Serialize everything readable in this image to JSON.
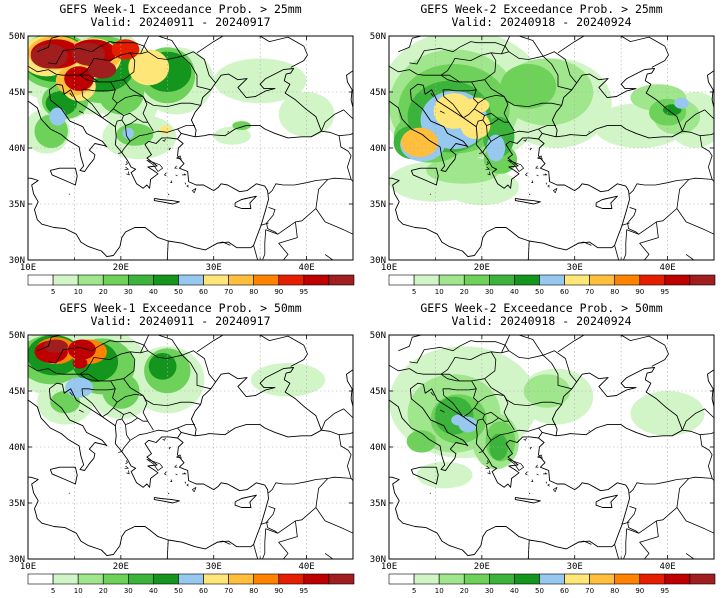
{
  "panels": [
    {
      "title": "GEFS Week-1 Exceedance Prob. > 25mm",
      "valid": "Valid: 20240911 - 20240917"
    },
    {
      "title": "GEFS Week-2 Exceedance Prob. > 25mm",
      "valid": "Valid: 20240918 - 20240924"
    },
    {
      "title": "GEFS Week-1 Exceedance Prob. > 50mm",
      "valid": "Valid: 20240911 - 20240917"
    },
    {
      "title": "GEFS Week-2 Exceedance Prob. > 50mm",
      "valid": "Valid: 20240918 - 20240924"
    }
  ],
  "axes": {
    "lat_labels": [
      "50N",
      "45N",
      "40N",
      "35N",
      "30N"
    ],
    "lon_labels": [
      "10E",
      "20E",
      "30E",
      "40E"
    ],
    "lat_range": [
      30,
      50
    ],
    "lon_range": [
      10,
      45
    ]
  },
  "colorbar": {
    "tick_labels": [
      "5",
      "10",
      "20",
      "30",
      "40",
      "50",
      "60",
      "70",
      "80",
      "90",
      "95"
    ],
    "colors": [
      "#ffffff",
      "#d2f5c8",
      "#a0e68c",
      "#6ed25a",
      "#3cb43c",
      "#14961e",
      "#96c8f0",
      "#ffe678",
      "#ffbe3c",
      "#ff8200",
      "#e61e00",
      "#be0000",
      "#a01e1e"
    ]
  }
}
